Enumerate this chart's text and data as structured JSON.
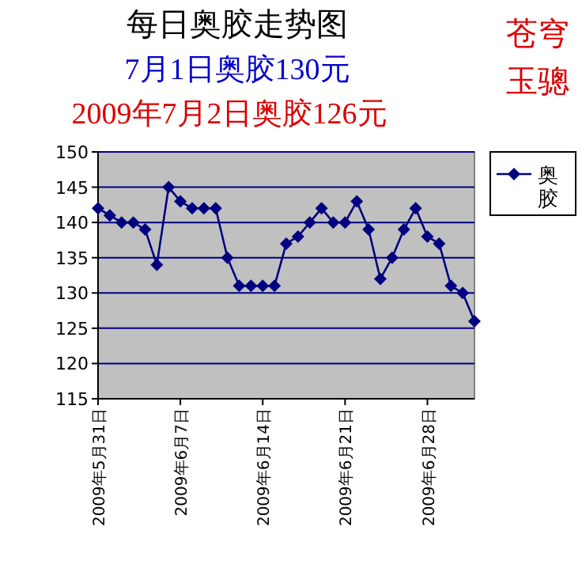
{
  "chart_data": {
    "type": "line",
    "title": "每日奥胶走势图",
    "subtitle": "7月1日奥胶130元",
    "annotations": [
      "2009年7月2日奥胶126元",
      "苍穹玉骢"
    ],
    "x": [
      "2009-05-31",
      "2009-06-01",
      "2009-06-02",
      "2009-06-03",
      "2009-06-04",
      "2009-06-05",
      "2009-06-06",
      "2009-06-07",
      "2009-06-08",
      "2009-06-09",
      "2009-06-10",
      "2009-06-11",
      "2009-06-12",
      "2009-06-13",
      "2009-06-14",
      "2009-06-15",
      "2009-06-16",
      "2009-06-17",
      "2009-06-18",
      "2009-06-19",
      "2009-06-20",
      "2009-06-21",
      "2009-06-22",
      "2009-06-23",
      "2009-06-24",
      "2009-06-25",
      "2009-06-26",
      "2009-06-27",
      "2009-06-28",
      "2009-06-29",
      "2009-06-30",
      "2009-07-01",
      "2009-07-02"
    ],
    "series": [
      {
        "name": "奥胶",
        "color": "#000080",
        "values": [
          142,
          141,
          140,
          140,
          139,
          134,
          145,
          143,
          142,
          142,
          142,
          135,
          131,
          131,
          131,
          131,
          137,
          138,
          140,
          142,
          140,
          140,
          143,
          139,
          132,
          135,
          139,
          142,
          138,
          137,
          131,
          130,
          126
        ]
      }
    ],
    "xlim": [
      "2009-05-31",
      "2009-07-02"
    ],
    "xticks": [
      {
        "value": "2009-05-31",
        "label": "2009年5月31日"
      },
      {
        "value": "2009-06-07",
        "label": "2009年6月7日"
      },
      {
        "value": "2009-06-14",
        "label": "2009年6月14日"
      },
      {
        "value": "2009-06-21",
        "label": "2009年6月21日"
      },
      {
        "value": "2009-06-28",
        "label": "2009年6月28日"
      }
    ],
    "ylim": [
      115,
      150
    ],
    "yticks": [
      115,
      120,
      125,
      130,
      135,
      140,
      145,
      150
    ],
    "grid": "y",
    "legend": "top right",
    "marker": "diamond",
    "line_style": "solid"
  }
}
